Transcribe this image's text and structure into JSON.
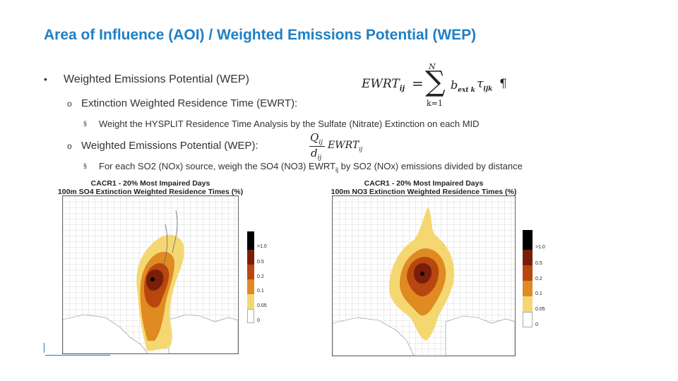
{
  "slide": {
    "title": "Area of Influence (AOI) / Weighted Emissions Potential (WEP)",
    "bullets": {
      "b1": "Weighted Emissions Potential (WEP)",
      "b1_marker": "•",
      "b2": "Extinction Weighted Residence Time (EWRT):",
      "b2_marker": "o",
      "b3": "Weight the HYSPLIT Residence Time Analysis by the Sulfate (Nitrate) Extinction on each MID",
      "b3_marker": "§",
      "b4": "Weighted Emissions Potential (WEP):",
      "b4_marker": "o",
      "b5_pre": "For each SO2 (NOx) source, weigh the SO4 (NO3) EWRT",
      "b5_sub": "ij",
      "b5_post": " by SO2 (NOx) emissions divided by distance",
      "b5_marker": "§"
    },
    "equation1": {
      "lhs": "EWRT",
      "lhs_sub": "ij",
      "eq": "=",
      "sigma": "∑",
      "upper": "N",
      "lower": "k=1",
      "term": "b",
      "term_sub": "ext k",
      "tau": "τ",
      "tau_sub": "ijk",
      "pilcrow": "¶"
    },
    "equation2": {
      "num": "Q",
      "num_sub": "ij",
      "den": "d",
      "den_sub": "ij",
      "term": "EWRT",
      "term_sub": "ij"
    }
  },
  "maps": [
    {
      "title_line1": "CACR1 - 20% Most Impaired Days",
      "title_line2": "100m SO4 Extinction Weighted Residence Times (%)",
      "legend": [
        ">1.0",
        "0.5",
        "0.2",
        "0.1",
        "0.05",
        "0"
      ]
    },
    {
      "title_line1": "CACR1 - 20% Most Impaired Days",
      "title_line2": "100m NO3 Extinction Weighted Residence Times (%)",
      "legend": [
        ">1.0",
        "0.5",
        "0.2",
        "0.1",
        "0.05",
        "0"
      ]
    }
  ],
  "colors": {
    "title": "#1f7fc6",
    "c_gt1": "#000000",
    "c_05": "#7a1e0a",
    "c_02": "#b8470f",
    "c_01": "#e08a22",
    "c_005": "#f5d772",
    "c_0": "#ffffff"
  }
}
